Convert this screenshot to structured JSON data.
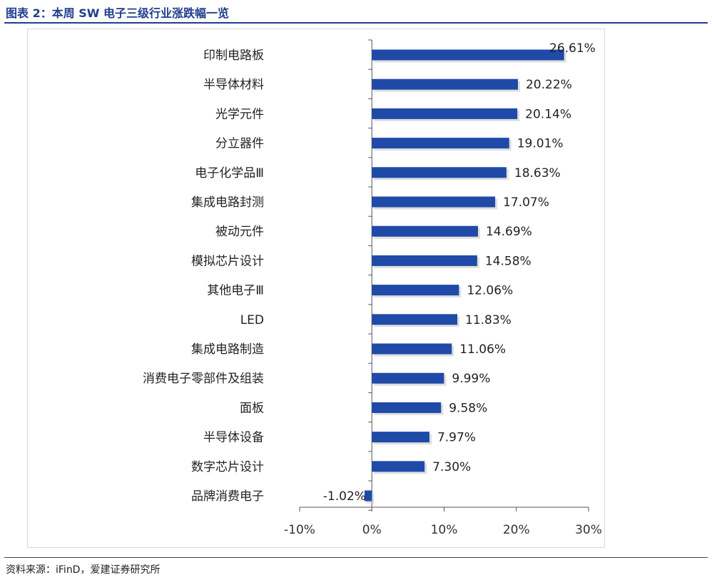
{
  "header": {
    "title": "图表 2：本周 SW 电子三级行业涨跌幅一览"
  },
  "footer": {
    "source": "资料来源：iFinD，爱建证券研究所"
  },
  "colors": {
    "title": "#1F3F8C",
    "bar": "#1F4AA8",
    "axis": "#555555"
  },
  "chart_data": {
    "type": "bar",
    "orientation": "horizontal",
    "categories": [
      "印制电路板",
      "半导体材料",
      "光学元件",
      "分立器件",
      "电子化学品Ⅲ",
      "集成电路封测",
      "被动元件",
      "模拟芯片设计",
      "其他电子Ⅲ",
      "LED",
      "集成电路制造",
      "消费电子零部件及组装",
      "面板",
      "半导体设备",
      "数字芯片设计",
      "品牌消费电子"
    ],
    "values": [
      26.61,
      20.22,
      20.14,
      19.01,
      18.63,
      17.07,
      14.69,
      14.58,
      12.06,
      11.83,
      11.06,
      9.99,
      9.58,
      7.97,
      7.3,
      -1.02
    ],
    "data_labels": [
      "26.61%",
      "20.22%",
      "20.14%",
      "19.01%",
      "18.63%",
      "17.07%",
      "14.69%",
      "14.58%",
      "12.06%",
      "11.83%",
      "11.06%",
      "9.99%",
      "9.58%",
      "7.97%",
      "7.30%",
      "-1.02%"
    ],
    "xlim": [
      -10,
      30
    ],
    "xticks": [
      -10,
      0,
      10,
      20,
      30
    ],
    "xtick_labels": [
      "-10%",
      "0%",
      "10%",
      "20%",
      "30%"
    ],
    "grid": false,
    "legend": "none"
  }
}
